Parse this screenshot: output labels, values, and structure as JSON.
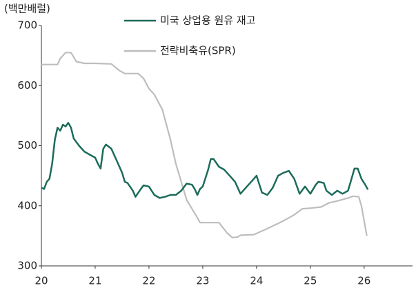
{
  "chart_data": {
    "type": "line",
    "y_label": "(백만배럴)",
    "xlim": [
      20,
      26.9
    ],
    "xticks": [
      20,
      21,
      22,
      23,
      24,
      25,
      26
    ],
    "ylim": [
      300,
      700
    ],
    "yticks": [
      300,
      400,
      500,
      600,
      700
    ],
    "grid": false,
    "legend": "top",
    "series": [
      {
        "name": "미국 상업용 원유 재고",
        "color": "#1b6b5a",
        "x": [
          20.0,
          20.05,
          20.1,
          20.15,
          20.2,
          20.25,
          20.3,
          20.35,
          20.4,
          20.45,
          20.5,
          20.55,
          20.6,
          20.7,
          20.8,
          20.9,
          21.0,
          21.05,
          21.1,
          21.15,
          21.2,
          21.3,
          21.4,
          21.5,
          21.55,
          21.6,
          21.7,
          21.75,
          21.85,
          21.9,
          22.0,
          22.05,
          22.1,
          22.2,
          22.3,
          22.4,
          22.5,
          22.6,
          22.7,
          22.8,
          22.85,
          22.9,
          22.95,
          23.0,
          23.1,
          23.15,
          23.2,
          23.3,
          23.4,
          23.5,
          23.6,
          23.7,
          23.8,
          23.9,
          24.0,
          24.1,
          24.2,
          24.3,
          24.4,
          24.5,
          24.6,
          24.7,
          24.8,
          24.9,
          25.0,
          25.1,
          25.15,
          25.25,
          25.3,
          25.4,
          25.5,
          25.6,
          25.7,
          25.75,
          25.82,
          25.88,
          25.95,
          26.02,
          26.07
        ],
        "values": [
          430,
          428,
          440,
          445,
          470,
          510,
          530,
          525,
          535,
          532,
          538,
          530,
          512,
          500,
          490,
          485,
          480,
          470,
          462,
          495,
          502,
          495,
          475,
          455,
          440,
          438,
          425,
          415,
          428,
          434,
          432,
          425,
          418,
          413,
          415,
          418,
          418,
          425,
          437,
          435,
          428,
          418,
          428,
          432,
          460,
          478,
          478,
          465,
          460,
          450,
          440,
          420,
          430,
          440,
          450,
          422,
          418,
          430,
          450,
          455,
          458,
          445,
          420,
          432,
          420,
          435,
          440,
          438,
          425,
          418,
          425,
          420,
          425,
          440,
          462,
          462,
          445,
          435,
          427
        ]
      },
      {
        "name": "전략비축유(SPR)",
        "color": "#bdbdbd",
        "x": [
          20.0,
          20.3,
          20.35,
          20.45,
          20.55,
          20.65,
          20.8,
          21.0,
          21.3,
          21.45,
          21.55,
          21.8,
          21.9,
          22.0,
          22.1,
          22.25,
          22.4,
          22.5,
          22.6,
          22.7,
          22.8,
          22.9,
          22.95,
          23.3,
          23.45,
          23.55,
          23.65,
          23.7,
          23.95,
          24.2,
          24.5,
          24.7,
          24.85,
          25.0,
          25.2,
          25.35,
          25.5,
          25.7,
          25.8,
          25.9,
          25.95,
          26.0,
          26.05
        ],
        "values": [
          635,
          635,
          645,
          655,
          655,
          640,
          637,
          637,
          636,
          625,
          620,
          620,
          612,
          595,
          585,
          560,
          510,
          470,
          440,
          410,
          395,
          380,
          372,
          372,
          355,
          347,
          348,
          351,
          352,
          362,
          375,
          385,
          395,
          396,
          398,
          405,
          408,
          413,
          416,
          415,
          400,
          375,
          350
        ]
      }
    ]
  }
}
